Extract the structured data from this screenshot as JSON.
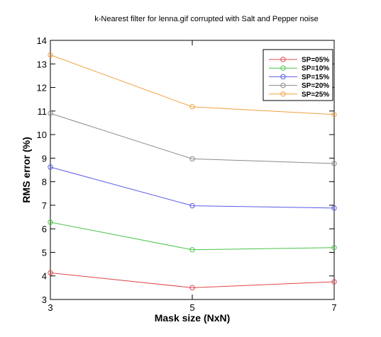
{
  "chart_data": {
    "type": "line",
    "title": "k-Nearest filter for lenna.gif corrupted with Salt and Pepper noise",
    "xlabel": "Mask size (NxN)",
    "ylabel": "RMS error (%)",
    "x": [
      3,
      5,
      7
    ],
    "x_ticks": [
      "3",
      "5",
      "7"
    ],
    "xlim": [
      3,
      7
    ],
    "ylim": [
      3,
      14
    ],
    "y_ticks": [
      "3",
      "4",
      "5",
      "6",
      "7",
      "8",
      "9",
      "10",
      "11",
      "12",
      "13",
      "14"
    ],
    "grid": false,
    "legend_position": "top-right",
    "series": [
      {
        "name": "SP=05%",
        "color": "#e0474c",
        "values": [
          4.13,
          3.5,
          3.75
        ]
      },
      {
        "name": "SP=10%",
        "color": "#49c449",
        "values": [
          6.28,
          5.11,
          5.2
        ]
      },
      {
        "name": "SP=15%",
        "color": "#5a5ae8",
        "values": [
          8.62,
          6.98,
          6.88
        ]
      },
      {
        "name": "SP=20%",
        "color": "#8a8a8a",
        "values": [
          10.9,
          8.97,
          8.77
        ]
      },
      {
        "name": "SP=25%",
        "color": "#f0a040",
        "values": [
          13.38,
          11.18,
          10.85
        ]
      }
    ]
  }
}
